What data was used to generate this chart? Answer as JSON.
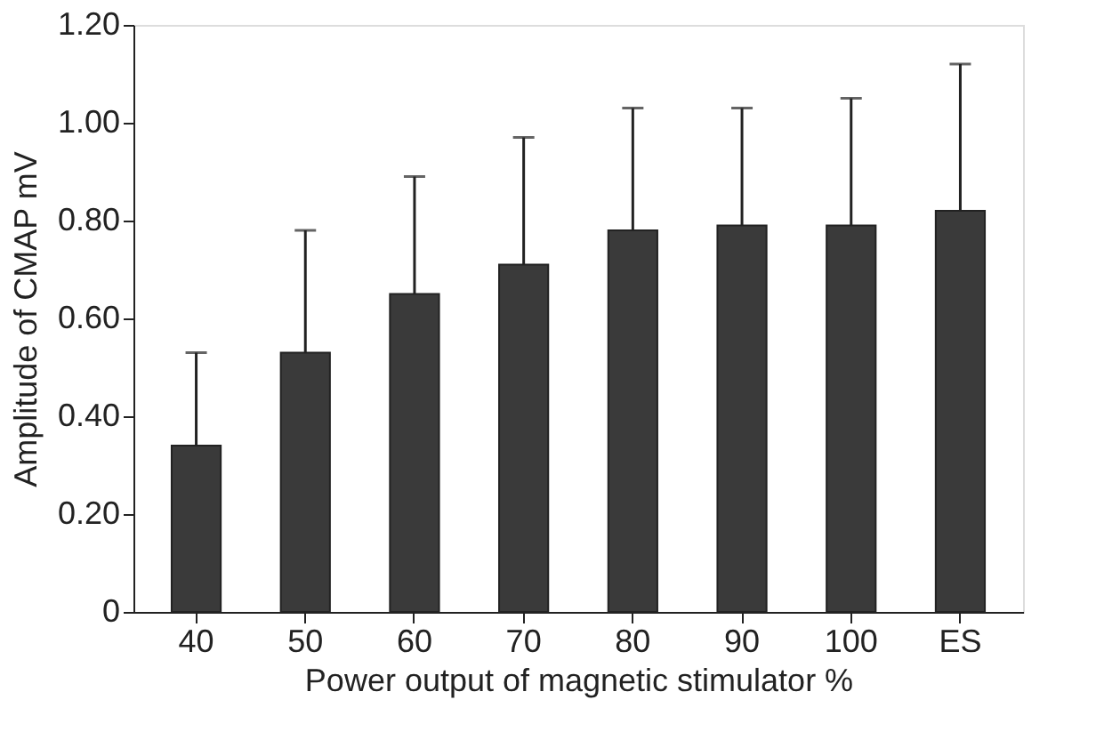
{
  "chart_data": {
    "type": "bar",
    "xlabel": "Power output of magnetic stimulator  %",
    "ylabel": "Amplitude of CMAP  mV",
    "categories": [
      "40",
      "50",
      "60",
      "70",
      "80",
      "90",
      "100",
      "ES"
    ],
    "values": [
      0.34,
      0.53,
      0.65,
      0.71,
      0.78,
      0.79,
      0.79,
      0.82
    ],
    "errors": [
      [
        0.34,
        0.53
      ],
      [
        0.53,
        0.78
      ],
      [
        0.65,
        0.89
      ],
      [
        0.71,
        0.97
      ],
      [
        0.78,
        1.03
      ],
      [
        0.79,
        1.03
      ],
      [
        0.79,
        1.05
      ],
      [
        0.82,
        1.12
      ]
    ],
    "color": "#3a3a3a",
    "ylim": [
      0,
      1.2
    ],
    "yticks": [
      0,
      {
        "value": 0.2,
        "label": "0.20"
      },
      {
        "value": 0.4,
        "label": "0.40"
      },
      {
        "value": 0.6,
        "label": "0.60"
      },
      {
        "value": 0.8,
        "label": "0.80"
      },
      {
        "value": 1.0,
        "label": "1.00"
      },
      {
        "value": 1.2,
        "label": "1.20"
      }
    ],
    "grid": false
  }
}
